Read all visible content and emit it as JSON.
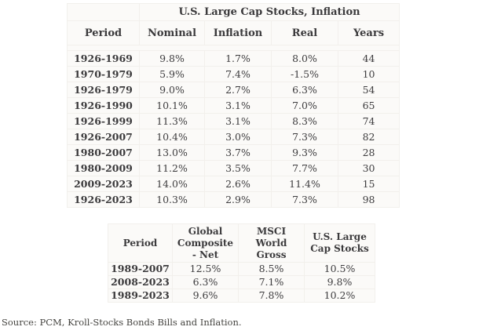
{
  "colors": {
    "page_background": "#ffffff",
    "table_background": "#fbfaf8",
    "table_border": "#f2f0ec",
    "text": "#3e3d3f"
  },
  "chart_data": [
    {
      "type": "table",
      "title": "U.S. Large Cap Stocks, Inflation",
      "columns": [
        "Period",
        "Nominal",
        "Inflation",
        "Real",
        "Years"
      ],
      "rows": [
        [
          "1926-1969",
          "9.8%",
          "1.7%",
          "8.0%",
          "44"
        ],
        [
          "1970-1979",
          "5.9%",
          "7.4%",
          "-1.5%",
          "10"
        ],
        [
          "1926-1979",
          "9.0%",
          "2.7%",
          "6.3%",
          "54"
        ],
        [
          "1926-1990",
          "10.1%",
          "3.1%",
          "7.0%",
          "65"
        ],
        [
          "1926-1999",
          "11.3%",
          "3.1%",
          "8.3%",
          "74"
        ],
        [
          "1926-2007",
          "10.4%",
          "3.0%",
          "7.3%",
          "82"
        ],
        [
          "1980-2007",
          "13.0%",
          "3.7%",
          "9.3%",
          "28"
        ],
        [
          "1980-2009",
          "11.2%",
          "3.5%",
          "7.7%",
          "30"
        ],
        [
          "2009-2023",
          "14.0%",
          "2.6%",
          "11.4%",
          "15"
        ],
        [
          "1926-2023",
          "10.3%",
          "2.9%",
          "7.3%",
          "98"
        ]
      ]
    },
    {
      "type": "table",
      "title": "",
      "columns": [
        "Period",
        "Global Composite - Net",
        "MSCI World Gross",
        "U.S. Large Cap Stocks"
      ],
      "rows": [
        [
          "1989-2007",
          "12.5%",
          "8.5%",
          "10.5%"
        ],
        [
          "2008-2023",
          "6.3%",
          "7.1%",
          "9.8%"
        ],
        [
          "1989-2023",
          "9.6%",
          "7.8%",
          "10.2%"
        ]
      ]
    }
  ],
  "footer": {
    "source": "Source: PCM, Kroll-Stocks Bonds Bills and Inflation."
  }
}
